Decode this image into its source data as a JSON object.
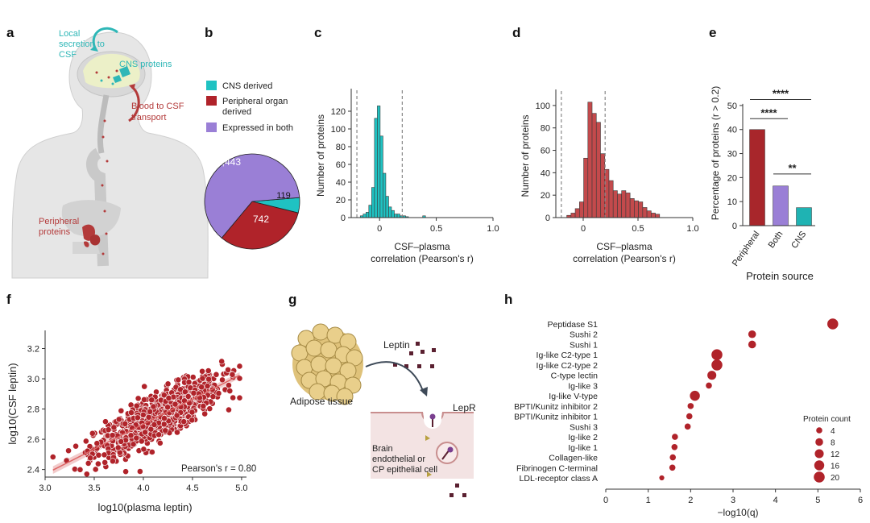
{
  "panels": {
    "a": {
      "letter": "a",
      "labels": {
        "local_secretion": [
          "Local",
          "secretion to",
          "CSF"
        ],
        "cns_proteins": "CNS proteins",
        "blood_to_csf": [
          "Blood to CSF",
          "transport"
        ],
        "peripheral_proteins": [
          "Peripheral",
          "proteins"
        ]
      },
      "colors": {
        "cns": "#2fb7b7",
        "peripheral": "#b33a3a"
      }
    },
    "b": {
      "letter": "b",
      "legend": [
        {
          "label": [
            "CNS derived"
          ],
          "color": "#1fc2c2"
        },
        {
          "label": [
            "Peripheral organ",
            "derived"
          ],
          "color": "#b0232a"
        },
        {
          "label": [
            "Expressed in both"
          ],
          "color": "#9a7fd6"
        }
      ]
    },
    "c": {
      "letter": "c"
    },
    "d": {
      "letter": "d"
    },
    "e": {
      "letter": "e"
    },
    "f": {
      "letter": "f"
    },
    "g": {
      "letter": "g",
      "labels": {
        "leptin": "Leptin",
        "adipose": "Adipose tissue",
        "lepr": "LepR",
        "cell": [
          "Brain",
          "endothelial or",
          "CP epithelial cell"
        ]
      }
    },
    "h": {
      "letter": "h"
    }
  },
  "chart_data": [
    {
      "id": "b",
      "type": "pie",
      "slices": [
        {
          "label": "Expressed in both",
          "value": 1443,
          "display": "1,443",
          "color": "#9a7fd6"
        },
        {
          "label": "Peripheral organ derived",
          "value": 742,
          "display": "742",
          "color": "#b0232a"
        },
        {
          "label": "CNS derived",
          "value": 119,
          "display": "119",
          "color": "#1fc2c2"
        }
      ]
    },
    {
      "id": "c",
      "type": "bar",
      "title": "",
      "xlabel": [
        "CSF–plasma",
        "correlation (Pearson's r)"
      ],
      "ylabel": "Number of proteins",
      "xlim": [
        -0.25,
        1.0
      ],
      "ylim": [
        0,
        140
      ],
      "xticks": [
        0,
        0.5,
        1.0
      ],
      "xtick_labels": [
        "0",
        "0.5",
        "1.0"
      ],
      "yticks": [
        0,
        20,
        40,
        60,
        80,
        100,
        120
      ],
      "bin_start": -0.17,
      "bin_width": 0.025,
      "values": [
        2,
        4,
        6,
        14,
        34,
        112,
        126,
        92,
        50,
        24,
        12,
        8,
        4,
        4,
        2,
        2,
        1,
        0,
        0,
        0,
        0,
        0,
        2
      ],
      "threshold_lines": [
        -0.2,
        0.2
      ],
      "color": "#1fc2c2"
    },
    {
      "id": "d",
      "type": "bar",
      "title": "",
      "xlabel": [
        "CSF–plasma",
        "correlation (Pearson's r)"
      ],
      "ylabel": "Number of proteins",
      "xlim": [
        -0.25,
        1.0
      ],
      "ylim": [
        0,
        110
      ],
      "xticks": [
        0,
        0.5,
        1.0
      ],
      "xtick_labels": [
        "0",
        "0.5",
        "1.0"
      ],
      "yticks": [
        0,
        20,
        40,
        60,
        80,
        100
      ],
      "bin_start": -0.15,
      "bin_width": 0.0385,
      "values": [
        2,
        4,
        8,
        14,
        53,
        103,
        93,
        85,
        57,
        43,
        33,
        24,
        21,
        24,
        22,
        17,
        15,
        14,
        9,
        6,
        4,
        3
      ],
      "threshold_lines": [
        -0.2,
        0.2
      ],
      "color": "#c34a4c"
    },
    {
      "id": "e",
      "type": "bar",
      "title": "",
      "xlabel": "Protein source",
      "ylabel": "Percentage of proteins (r > 0.2)",
      "ylim": [
        0,
        55
      ],
      "yticks": [
        0,
        10,
        20,
        30,
        40,
        50
      ],
      "categories": [
        "Peripheral",
        "Both",
        "CNS"
      ],
      "values": [
        40,
        16.5,
        7.5
      ],
      "colors": [
        "#a8262b",
        "#9a7fd6",
        "#1fb3b3"
      ],
      "significance": [
        {
          "from": 0,
          "to": 2,
          "label": "****",
          "y": 52.5
        },
        {
          "from": 0,
          "to": 1,
          "label": "****",
          "y": 44.5
        },
        {
          "from": 1,
          "to": 2,
          "label": "**",
          "y": 21.5
        }
      ]
    },
    {
      "id": "f",
      "type": "scatter",
      "title": "",
      "xlabel": "log10(plasma leptin)",
      "ylabel": "log10(CSF leptin)",
      "xlim": [
        3.0,
        5.05
      ],
      "ylim": [
        2.35,
        3.32
      ],
      "xticks": [
        3.0,
        3.5,
        4.0,
        4.5,
        5.0
      ],
      "yticks": [
        2.4,
        2.6,
        2.8,
        3.0,
        3.2
      ],
      "annotation": "Pearson's r = 0.80",
      "fit": {
        "slope": 0.33,
        "intercept": 1.38
      },
      "n_points": 900,
      "color": "#b0232a"
    },
    {
      "id": "h",
      "type": "scatter",
      "title": "",
      "xlabel": "−log10(q)",
      "xlim": [
        0,
        6
      ],
      "xticks": [
        0,
        1,
        2,
        3,
        4,
        5,
        6
      ],
      "categories": [
        "Peptidase S1",
        "Sushi 2",
        "Sushi 1",
        "Ig-like C2-type 1",
        "Ig-like C2-type 2",
        "C-type lectin",
        "Ig-like 3",
        "Ig-like V-type",
        "BPTI/Kunitz inhibitor 2",
        "BPTI/Kunitz inhibitor 1",
        "Sushi 3",
        "Ig-like 2",
        "Ig-like 1",
        "Collagen-like",
        "Fibrinogen C-terminal",
        "LDL-receptor class A"
      ],
      "x": [
        5.35,
        3.45,
        3.45,
        2.62,
        2.62,
        2.5,
        2.43,
        2.1,
        2.0,
        1.97,
        1.93,
        1.63,
        1.62,
        1.58,
        1.57,
        1.32
      ],
      "size": [
        20,
        8,
        8,
        20,
        20,
        12,
        4,
        16,
        4,
        4,
        4,
        4,
        4,
        4,
        4,
        2
      ],
      "size_legend": {
        "title": "Protein count",
        "values": [
          4,
          8,
          12,
          16,
          20
        ]
      },
      "color": "#b0232a"
    }
  ]
}
